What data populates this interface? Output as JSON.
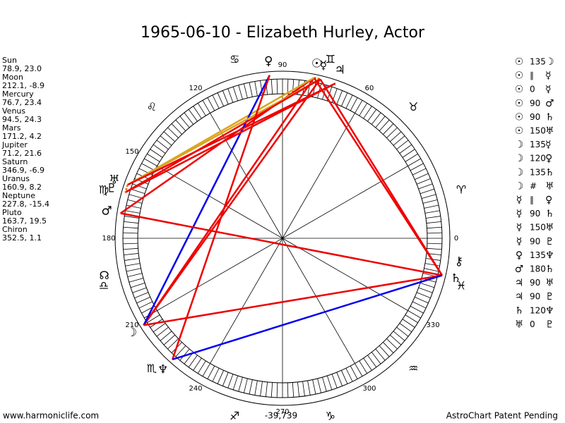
{
  "title": "1965-06-10 - Elizabeth Hurley, Actor",
  "planets": [
    {
      "name": "Sun",
      "glyph": "☉",
      "coords": "78.9, 23.0"
    },
    {
      "name": "Moon",
      "glyph": "☽",
      "coords": "212.1, -8.9"
    },
    {
      "name": "Mercury",
      "glyph": "☿",
      "coords": "76.7, 23.4"
    },
    {
      "name": "Venus",
      "glyph": "♀",
      "coords": "94.5, 24.3"
    },
    {
      "name": "Mars",
      "glyph": "♂",
      "coords": "171.2, 4.2"
    },
    {
      "name": "Jupiter",
      "glyph": "♃",
      "coords": "71.2, 21.6"
    },
    {
      "name": "Saturn",
      "glyph": "♄",
      "coords": "346.9, -6.9"
    },
    {
      "name": "Uranus",
      "glyph": "♅",
      "coords": "160.9, 8.2"
    },
    {
      "name": "Neptune",
      "glyph": "♆",
      "coords": "227.8, -15.4"
    },
    {
      "name": "Pluto",
      "glyph": "♇",
      "coords": "163.7, 19.5"
    },
    {
      "name": "Chiron",
      "glyph": "⚷",
      "coords": "352.5, 1.1"
    }
  ],
  "aspects": [
    {
      "a": "☉",
      "kind": "135",
      "b": "☽"
    },
    {
      "a": "☉",
      "kind": "∥",
      "b": "☿"
    },
    {
      "a": "☉",
      "kind": "0",
      "b": "☿"
    },
    {
      "a": "☉",
      "kind": "90",
      "b": "♂"
    },
    {
      "a": "☉",
      "kind": "90",
      "b": "♄"
    },
    {
      "a": "☉",
      "kind": "150",
      "b": "♅"
    },
    {
      "a": "☽",
      "kind": "135",
      "b": "☿"
    },
    {
      "a": "☽",
      "kind": "120",
      "b": "♀"
    },
    {
      "a": "☽",
      "kind": "135",
      "b": "♄"
    },
    {
      "a": "☽",
      "kind": "#",
      "b": "♅"
    },
    {
      "a": "☿",
      "kind": "∥",
      "b": "♀"
    },
    {
      "a": "☿",
      "kind": "90",
      "b": "♄"
    },
    {
      "a": "☿",
      "kind": "150",
      "b": "♅"
    },
    {
      "a": "☿",
      "kind": "90",
      "b": "♇"
    },
    {
      "a": "♀",
      "kind": "135",
      "b": "♆"
    },
    {
      "a": "♂",
      "kind": "180",
      "b": "♄"
    },
    {
      "a": "♃",
      "kind": "90",
      "b": "♅"
    },
    {
      "a": "♃",
      "kind": "90",
      "b": "♇"
    },
    {
      "a": "♄",
      "kind": "120",
      "b": "♆"
    },
    {
      "a": "♅",
      "kind": "0",
      "b": "♇"
    }
  ],
  "degree_labels": [
    "0",
    "60",
    "90",
    "120",
    "150",
    "180",
    "210",
    "240",
    "270",
    "300",
    "330"
  ],
  "signs": [
    "♈",
    "♉",
    "♊",
    "♋",
    "♌",
    "♍",
    "♎",
    "♏",
    "♐",
    "♑",
    "♒",
    "♓"
  ],
  "node_glyph": "☊",
  "footer": {
    "left": "www.harmoniclife.com",
    "center": "-39,739",
    "right": "AstroChart Patent Pending"
  }
}
